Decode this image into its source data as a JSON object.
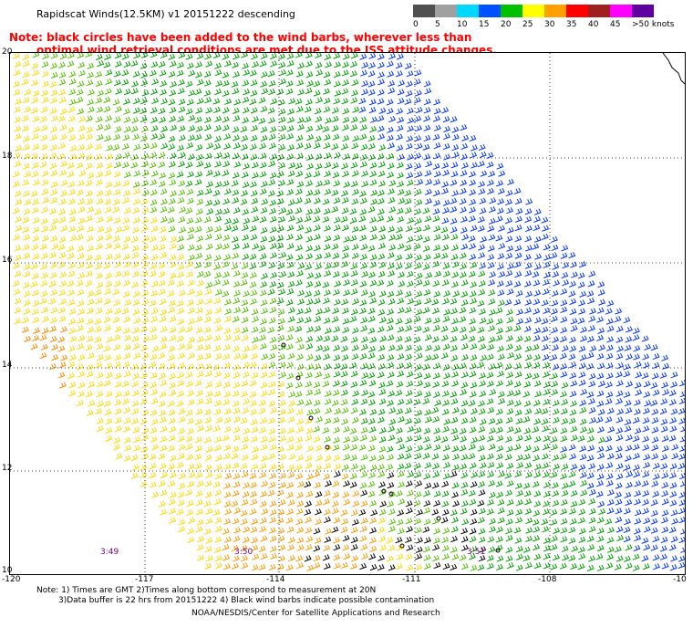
{
  "header": {
    "title": "Rapidscat Winds(12.5KM) v1 20151222 descending",
    "note_line1": "Note: black circles have been added to the wind barbs, wherever less than",
    "note_line2": "optimal wind retrieval conditions are met due to the ISS attitude changes."
  },
  "colorbar": {
    "unit": "knots",
    "labels": [
      "0",
      "5",
      "10",
      "15",
      "20",
      "25",
      "30",
      "35",
      "40",
      "45",
      ">50 knots"
    ],
    "colors": [
      "#505050",
      "#a0a0a0",
      "#00d8ff",
      "#0050ff",
      "#00c000",
      "#ffff00",
      "#ffa000",
      "#ff0000",
      "#a02020",
      "#ff00ff",
      "#6000a0"
    ]
  },
  "map": {
    "lat_labels": [
      "20",
      "18",
      "16",
      "14",
      "12",
      "10"
    ],
    "lon_labels": [
      "-120",
      "-117",
      "-114",
      "-111",
      "-108",
      "-10"
    ],
    "time_labels": [
      "3:49",
      "3:50",
      "3:51"
    ]
  },
  "footer": {
    "line1": "Note: 1) Times are GMT 2)Times along bottom correspond to measurement at 20N",
    "line2": "3)Data buffer is 22 hrs from 20151222 4) Black wind barbs indicate possible contamination",
    "line3": "NOAA/NESDIS/Center for Satellite Applications and Research"
  }
}
